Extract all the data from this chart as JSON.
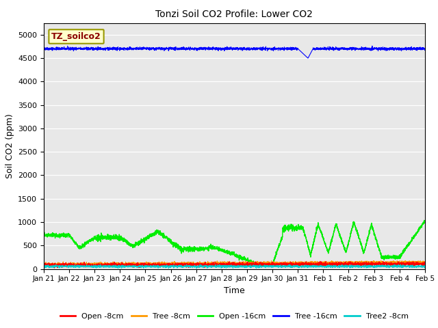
{
  "title": "Tonzi Soil CO2 Profile: Lower CO2",
  "xlabel": "Time",
  "ylabel": "Soil CO2 (ppm)",
  "ylim": [
    0,
    5250
  ],
  "yticks": [
    0,
    500,
    1000,
    1500,
    2000,
    2500,
    3000,
    3500,
    4000,
    4500,
    5000
  ],
  "annotation_text": "TZ_soilco2",
  "annotation_bg": "#ffffcc",
  "annotation_fg": "#8b0000",
  "annotation_edge": "#999900",
  "plot_bg": "#e8e8e8",
  "fig_bg": "#ffffff",
  "series": {
    "Open -8cm": {
      "color": "#ff0000",
      "lw": 0.8
    },
    "Tree -8cm": {
      "color": "#ff9900",
      "lw": 0.8
    },
    "Open -16cm": {
      "color": "#00ee00",
      "lw": 1.0
    },
    "Tree -16cm": {
      "color": "#0000ff",
      "lw": 0.8
    },
    "Tree2 -8cm": {
      "color": "#00cccc",
      "lw": 0.8
    }
  },
  "tick_labels": [
    "Jan 21",
    "Jan 22",
    "Jan 23",
    "Jan 24",
    "Jan 25",
    "Jan 26",
    "Jan 27",
    "Jan 28",
    "Jan 29",
    "Jan 30",
    "Jan 31",
    "Feb 1",
    "Feb 2",
    "Feb 3",
    "Feb 4",
    "Feb 5"
  ],
  "n_points": 3360,
  "tree16_base": 4700,
  "tree16_noise": 15,
  "open8_base": 80,
  "open8_noise": 20,
  "tree8_base": 100,
  "tree8_noise": 15,
  "tree2_8_base": 55,
  "tree2_8_noise": 12
}
